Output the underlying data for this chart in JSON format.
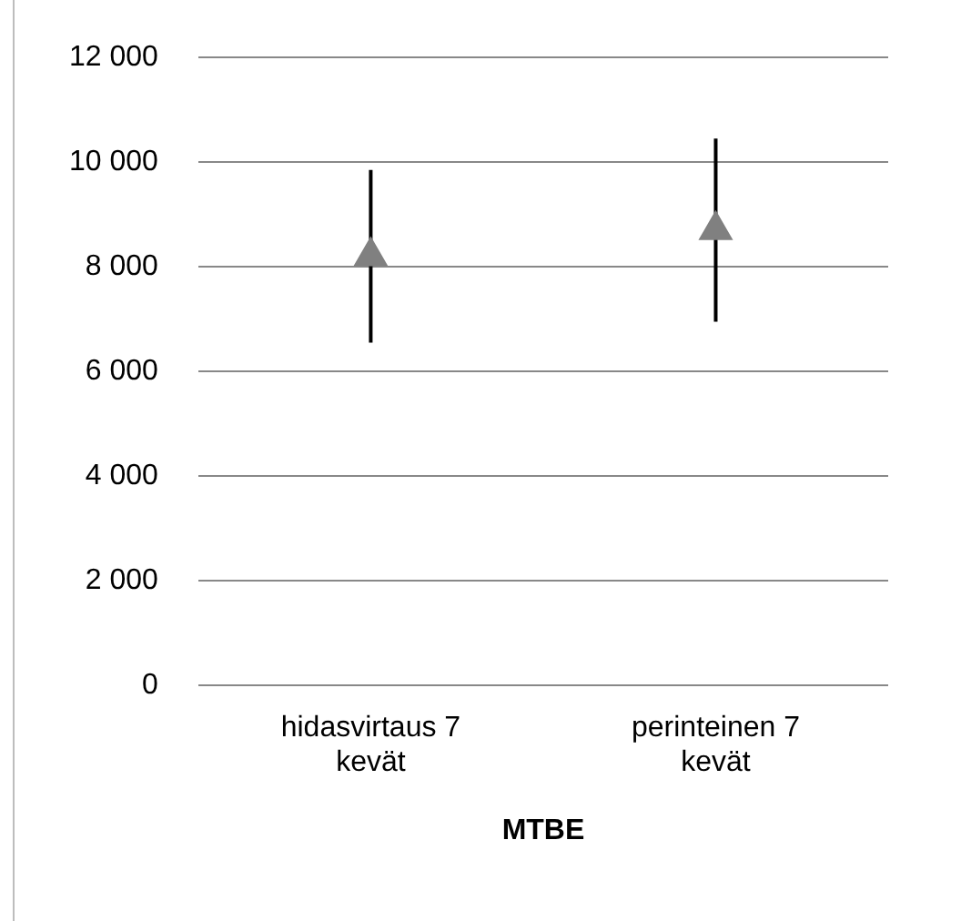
{
  "chart_data": {
    "type": "scatter",
    "xlabel": "MTBE",
    "categories": [
      "hidasvirtaus 7 kevät",
      "perinteinen 7 kevät"
    ],
    "series": [
      {
        "color": "#808080",
        "values": [
          8200,
          8700
        ],
        "errors": [
          1650,
          1750
        ]
      }
    ],
    "ylim": [
      0,
      12000
    ],
    "yticks": [
      {
        "value": 0,
        "label": "0"
      },
      {
        "value": 2000,
        "label": "2 000"
      },
      {
        "value": 4000,
        "label": "4 000"
      },
      {
        "value": 6000,
        "label": "6 000"
      },
      {
        "value": 8000,
        "label": "8 000"
      },
      {
        "value": 10000,
        "label": "10 000"
      },
      {
        "value": 12000,
        "label": "12 000"
      }
    ],
    "grid": "y",
    "legend": false,
    "marker": "triangle"
  }
}
